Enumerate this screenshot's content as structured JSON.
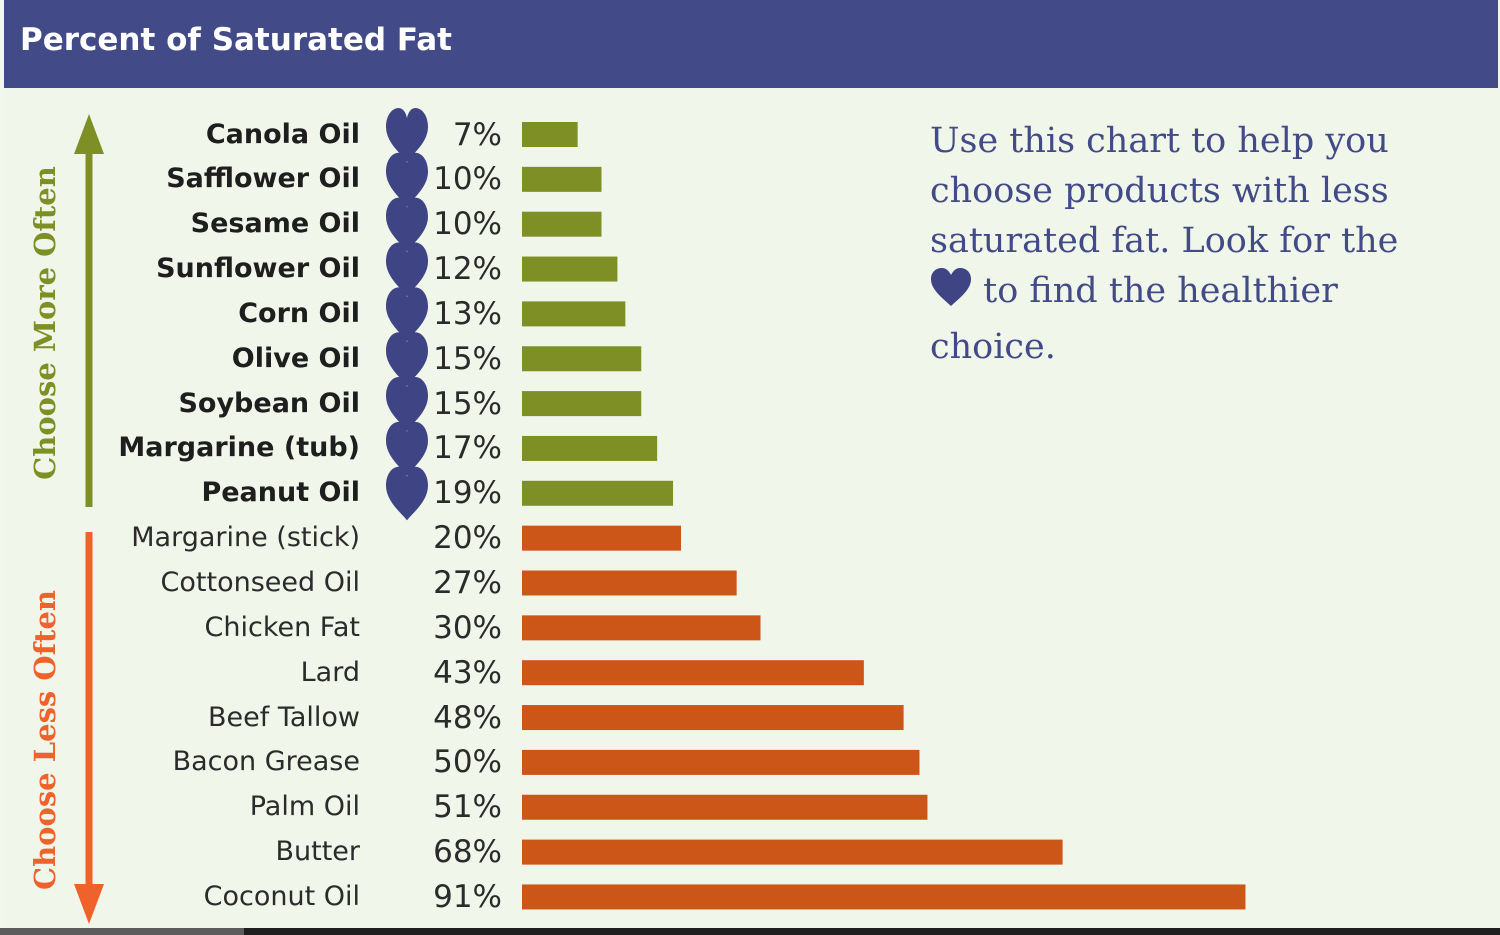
{
  "header": {
    "title": "Percent of Saturated Fat"
  },
  "side_labels": {
    "more": "Choose More Often",
    "less": "Choose Less Often"
  },
  "note": {
    "text": "Use this chart to help you choose products with less saturated fat. Look for the",
    "text_end": "to find the healthier choice."
  },
  "colors": {
    "header": "#424b87",
    "heart": "#3f4485",
    "green_bar": "#7d8f25",
    "orange_bar": "#cc5518",
    "more_arrow": "#7d8f25",
    "less_arrow": "#f0622b",
    "note_text": "#424b87"
  },
  "icons": {
    "heart": "heart-icon"
  },
  "chart_data": {
    "type": "bar",
    "orientation": "horizontal",
    "title": "Percent of Saturated Fat",
    "categories": [
      "Canola Oil",
      "Safflower Oil",
      "Sesame Oil",
      "Sunflower Oil",
      "Corn Oil",
      "Olive Oil",
      "Soybean Oil",
      "Margarine (tub)",
      "Peanut Oil",
      "Margarine (stick)",
      "Cottonseed Oil",
      "Chicken Fat",
      "Lard",
      "Beef Tallow",
      "Bacon Grease",
      "Palm Oil",
      "Butter",
      "Coconut Oil"
    ],
    "values": [
      7,
      10,
      10,
      12,
      13,
      15,
      15,
      17,
      19,
      20,
      27,
      30,
      43,
      48,
      50,
      51,
      68,
      91
    ],
    "value_labels": [
      "7%",
      "10%",
      "10%",
      "12%",
      "13%",
      "15%",
      "15%",
      "17%",
      "19%",
      "20%",
      "27%",
      "30%",
      "43%",
      "48%",
      "50%",
      "51%",
      "68%",
      "91%"
    ],
    "healthier": [
      true,
      true,
      true,
      true,
      true,
      true,
      true,
      true,
      true,
      false,
      false,
      false,
      false,
      false,
      false,
      false,
      false,
      false
    ],
    "xlim": [
      0,
      100
    ],
    "grid": false
  }
}
